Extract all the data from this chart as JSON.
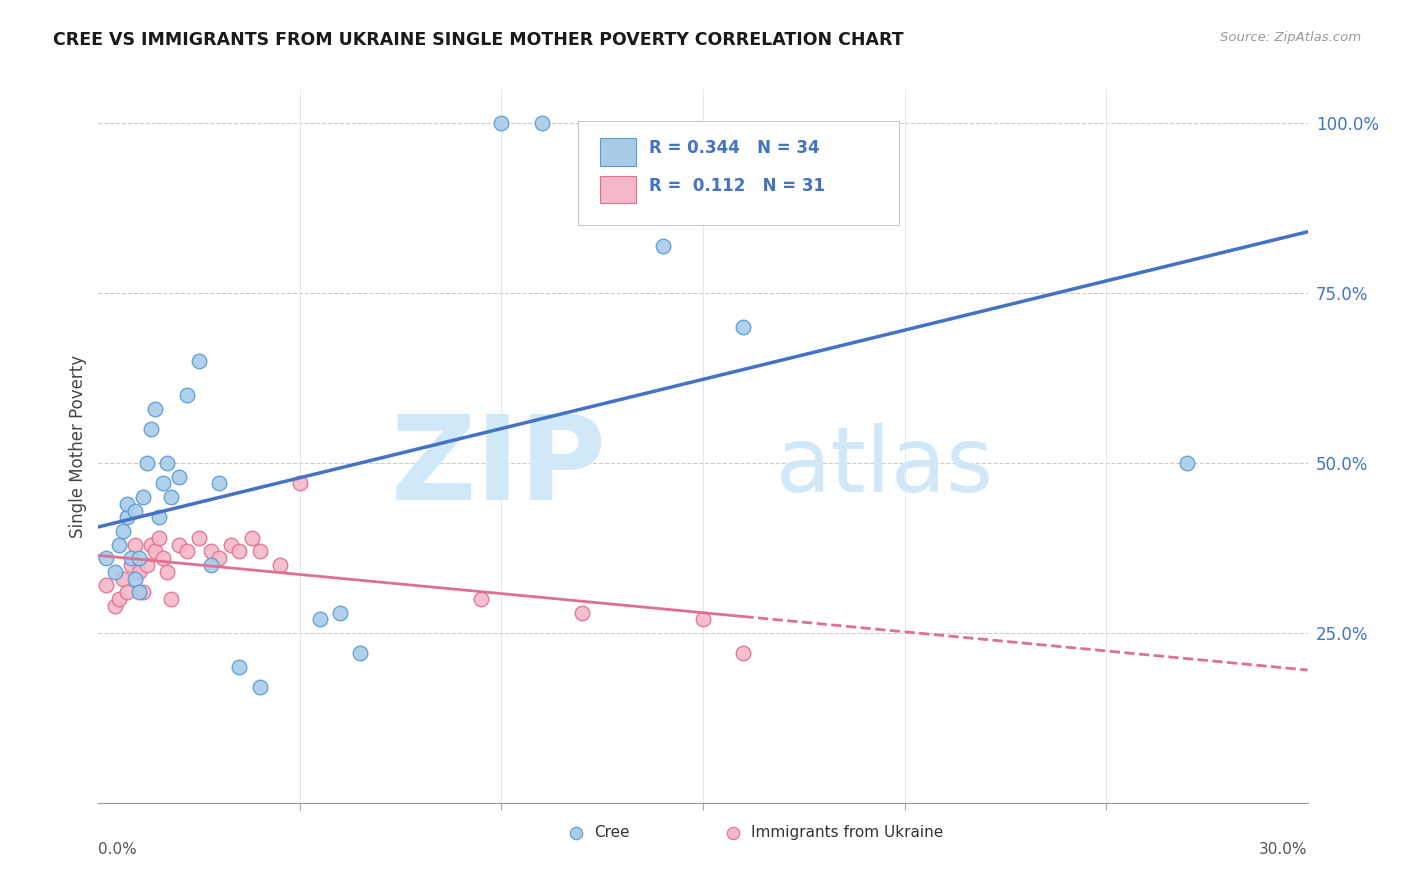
{
  "title": "CREE VS IMMIGRANTS FROM UKRAINE SINGLE MOTHER POVERTY CORRELATION CHART",
  "source": "Source: ZipAtlas.com",
  "ylabel": "Single Mother Poverty",
  "xmin": 0.0,
  "xmax": 0.3,
  "ymin": 0.0,
  "ymax": 1.05,
  "cree_color": "#a8cce8",
  "cree_edge_color": "#5b9bd5",
  "ukraine_color": "#f4b8c8",
  "ukraine_edge_color": "#e07090",
  "line_cree_color": "#4472c4",
  "line_ukraine_color": "#e07090",
  "legend_text_color": "#4472c4",
  "watermark_color": "#d0e8f8",
  "cree_scatter_x": [
    0.002,
    0.004,
    0.005,
    0.006,
    0.007,
    0.007,
    0.008,
    0.009,
    0.009,
    0.01,
    0.01,
    0.011,
    0.012,
    0.013,
    0.014,
    0.015,
    0.016,
    0.017,
    0.018,
    0.02,
    0.022,
    0.025,
    0.028,
    0.03,
    0.035,
    0.04,
    0.055,
    0.06,
    0.065,
    0.1,
    0.11,
    0.14,
    0.16,
    0.27
  ],
  "cree_scatter_y": [
    0.36,
    0.34,
    0.38,
    0.4,
    0.42,
    0.44,
    0.36,
    0.43,
    0.33,
    0.36,
    0.31,
    0.45,
    0.5,
    0.55,
    0.58,
    0.42,
    0.47,
    0.5,
    0.45,
    0.48,
    0.6,
    0.65,
    0.35,
    0.47,
    0.2,
    0.17,
    0.27,
    0.28,
    0.22,
    1.0,
    1.0,
    0.82,
    0.7,
    0.5
  ],
  "ukraine_scatter_x": [
    0.002,
    0.004,
    0.005,
    0.006,
    0.007,
    0.008,
    0.009,
    0.01,
    0.011,
    0.012,
    0.013,
    0.014,
    0.015,
    0.016,
    0.017,
    0.018,
    0.02,
    0.022,
    0.025,
    0.028,
    0.03,
    0.033,
    0.035,
    0.038,
    0.04,
    0.045,
    0.05,
    0.095,
    0.12,
    0.15,
    0.16
  ],
  "ukraine_scatter_y": [
    0.32,
    0.29,
    0.3,
    0.33,
    0.31,
    0.35,
    0.38,
    0.34,
    0.31,
    0.35,
    0.38,
    0.37,
    0.39,
    0.36,
    0.34,
    0.3,
    0.38,
    0.37,
    0.39,
    0.37,
    0.36,
    0.38,
    0.37,
    0.39,
    0.37,
    0.35,
    0.47,
    0.3,
    0.28,
    0.27,
    0.22
  ]
}
